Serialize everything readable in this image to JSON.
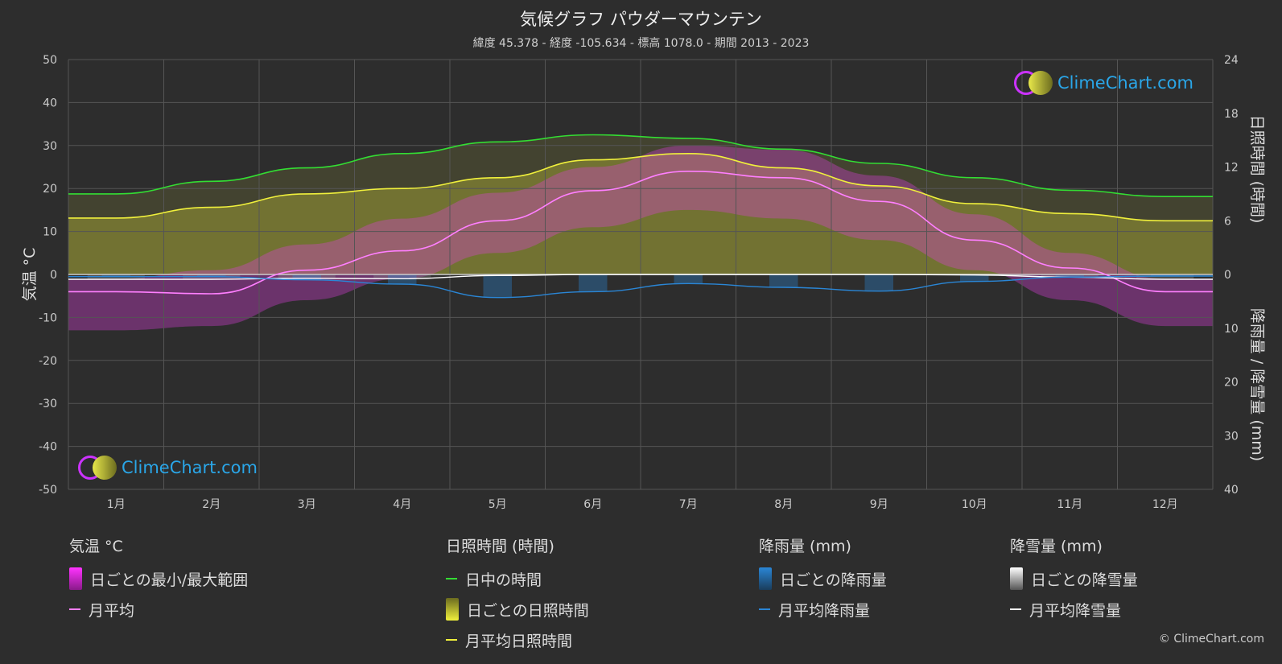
{
  "title": "気候グラフ パウダーマウンテン",
  "subtitle": "緯度 45.378 - 経度 -105.634 - 標高 1078.0 - 期間 2013 - 2023",
  "logo_text": "ClimeChart.com",
  "copyright": "© ClimeChart.com",
  "colors": {
    "background": "#2d2d2d",
    "grid": "#555555",
    "temp_range": "#e040e0",
    "temp_mean": "#ff7fff",
    "daylight": "#33dd33",
    "sunshine_fill": "#c8c83a",
    "sunshine_mean": "#f0f03c",
    "rain": "#2a86d6",
    "snow": "#ffffff"
  },
  "chart_data": {
    "type": "line",
    "months": [
      "1月",
      "2月",
      "3月",
      "4月",
      "5月",
      "6月",
      "7月",
      "8月",
      "9月",
      "10月",
      "11月",
      "12月"
    ],
    "left_axis": {
      "label": "気温 °C",
      "range": [
        -50,
        50
      ],
      "ticks": [
        50,
        40,
        30,
        20,
        10,
        0,
        -10,
        -20,
        -30,
        -40,
        -50
      ]
    },
    "right_axis_top": {
      "label": "日照時間 (時間)",
      "range": [
        0,
        24
      ],
      "ticks": [
        24,
        18,
        12,
        6,
        0
      ]
    },
    "right_axis_bottom": {
      "label": "降雨量 / 降雪量 (mm)",
      "range": [
        0,
        40
      ],
      "ticks": [
        0,
        10,
        20,
        30,
        40
      ]
    },
    "series": {
      "temp_mean_c": [
        -4,
        -4.5,
        1,
        5.5,
        12.5,
        19.5,
        24,
        22.5,
        17,
        8,
        1.5,
        -4
      ],
      "temp_max_c": [
        -1,
        1,
        7,
        13,
        19,
        25,
        30,
        29,
        23,
        14,
        5,
        -1
      ],
      "temp_min_c": [
        -13,
        -12,
        -6,
        -1,
        5,
        11,
        15,
        13,
        8,
        1,
        -6,
        -12
      ],
      "daylight_hours": [
        9.0,
        10.4,
        11.9,
        13.5,
        14.8,
        15.6,
        15.2,
        14.0,
        12.4,
        10.8,
        9.4,
        8.7
      ],
      "sunshine_hours": [
        6.3,
        7.5,
        9.0,
        9.6,
        10.8,
        12.8,
        13.5,
        11.9,
        9.9,
        7.9,
        6.8,
        6.0
      ],
      "rain_mm": [
        0.4,
        0.4,
        1.0,
        1.8,
        4.3,
        3.2,
        1.7,
        2.4,
        3.1,
        1.3,
        0.5,
        0.3
      ],
      "snow_mm": [
        0.9,
        0.9,
        0.7,
        0.8,
        0.2,
        0,
        0,
        0,
        0,
        0.1,
        0.5,
        0.9
      ]
    },
    "grid": true
  },
  "legend": {
    "temp": {
      "title": "気温 °C",
      "range_label": "日ごとの最小/最大範囲",
      "mean_label": "月平均"
    },
    "sun": {
      "title": "日照時間 (時間)",
      "daylight_label": "日中の時間",
      "daily_label": "日ごとの日照時間",
      "mean_label": "月平均日照時間"
    },
    "rain": {
      "title": "降雨量 (mm)",
      "daily_label": "日ごとの降雨量",
      "mean_label": "月平均降雨量"
    },
    "snow": {
      "title": "降雪量 (mm)",
      "daily_label": "日ごとの降雪量",
      "mean_label": "月平均降雪量"
    }
  }
}
